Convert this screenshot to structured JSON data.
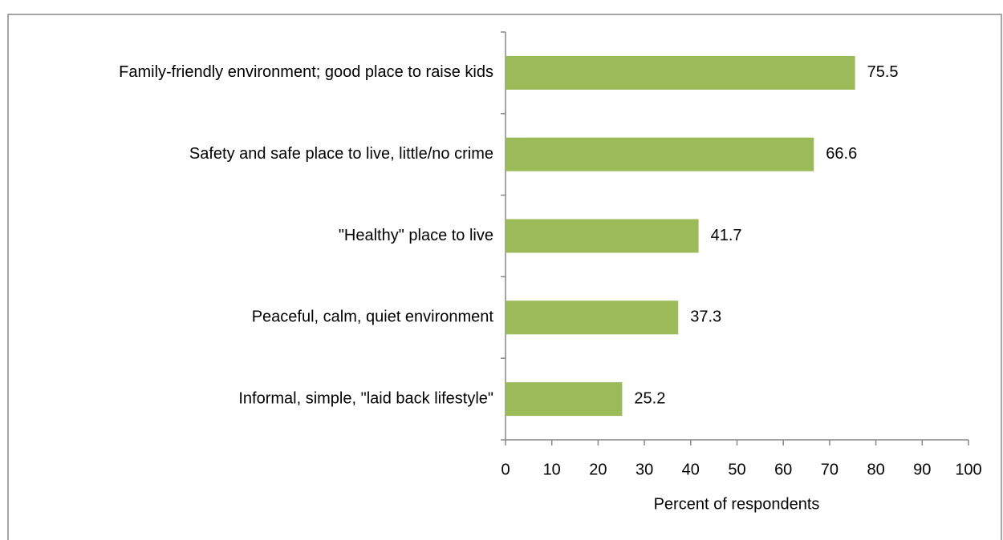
{
  "chart_data": {
    "type": "bar",
    "orientation": "horizontal",
    "x_label": "Percent of respondents",
    "categories": [
      "Family-friendly environment; good place to raise kids",
      "Safety and safe place to live, little/no crime",
      "\"Healthy\" place to live",
      "Peaceful, calm, quiet environment",
      "Informal, simple, \"laid back lifestyle\""
    ],
    "values": [
      75.5,
      66.6,
      41.7,
      37.3,
      25.2
    ],
    "color": "#9bbb59",
    "xlim": [
      0,
      100
    ],
    "xticks": [
      0,
      10,
      20,
      30,
      40,
      50,
      60,
      70,
      80,
      90,
      100
    ],
    "grid": false
  }
}
